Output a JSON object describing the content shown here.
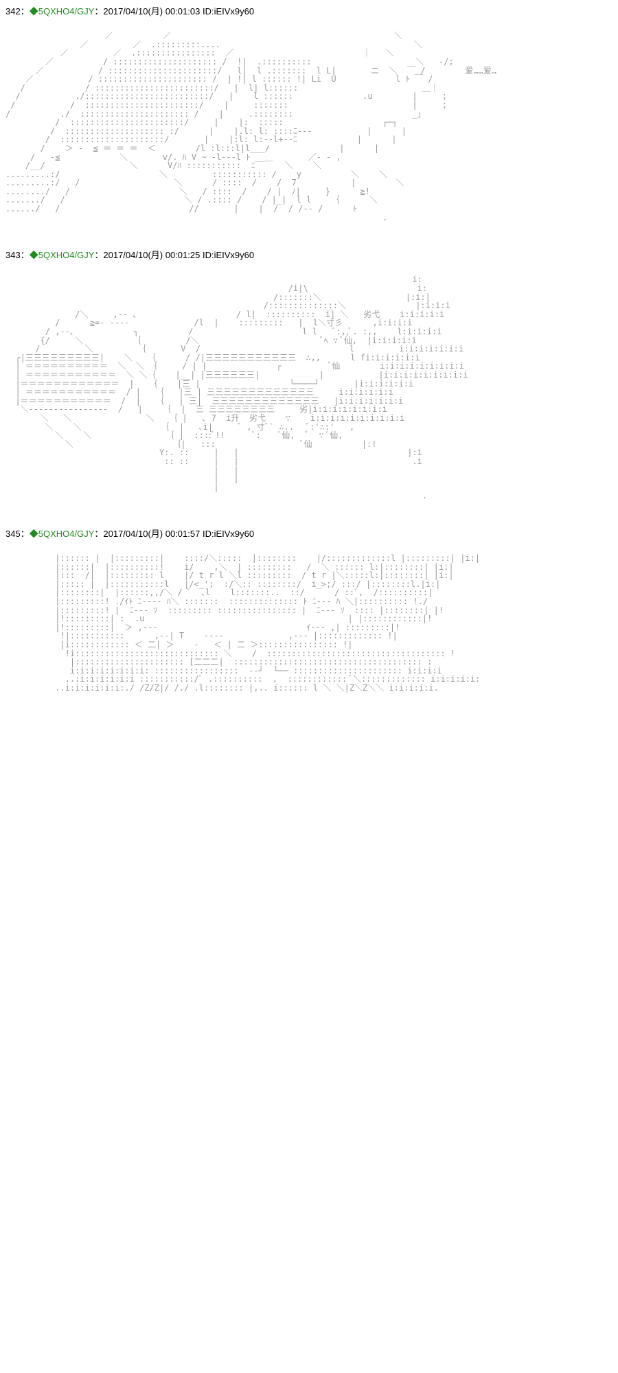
{
  "posts": [
    {
      "num": "342",
      "sep": "：",
      "diamond": "◆",
      "trip": "5QXHO4/GJY",
      "sep2": "：",
      "timestamp": "2017/04/10(月) 00:01:03",
      "idlabel": "ID:",
      "id": "iEIVx9y60",
      "ascii": "                    ／          ／                                             ＼\n               ／         ／  .:::::::::....                                       ＼\n           ／         ／  .::::::::::::::::  ／                          ｜   ＼\n        ／          / ::::::::::::::::::::: /  !|  .::::::::::                     ＼   -/;\n      ／           / ::::::::::::::::::::::/   l|  l .:::::::  l L|       ニ  ＼  ￣ /        爱……爱…\n    ／           / :::::::::::::::::::::: /  | !| l :::::: !| Li  U            l ﾄ ￣ /\n   /            / ::::::::::::::::::::::::/   |  l| l::::::                         ＿｜\n  /           ./:::::::::::::::::::::::::/   |    l ::::::              .u        |     ;\n /           /  :::::::::::::::::::::::/    |     :::::::                         |     ;\n/          ./  :::::::::::::::::::::: /    |     .::::::::                        _」\n          /  :::::::::::::::::::::::/     |    |:  :::::                    ┌─┐\n         /  :::::::::::::::::::: :/      |    |.l: l: ::::ﾆ---           |      |\n        /  :::::::::::::::::::::/       |    |:l: l:--l+--ﾆ            |      |\n       /    ＞ -  ≦ ＝ ＝ ＝  ＜        /l :l:::l|l___/              |      |\n     /   -≦            ＼       v/. ﾊ V ~ -l---l ﾄ __＿       ／‐ - ,\n    /__/                 ＼      V/ﾊ :::::::::::  ﾆ      ＼    ＼\n.........:/                    ＼         ::::::::::: /    y          ＼    ＼\n.........:/   /                   ＼      / ::::  /    /  7           |        ＼\n......../   /                      ＼   / ::::  /    / |  ﾉ|     }      ≧!\n......./   /                        ＼ / .:::: /    / |_|  l l    ｛      ＼\n....../   /                          //       |    |  /  / /-- /      ﾄ\n                                                                            .",
      "ascii_color": "#999999",
      "dialogue_text": "爱……爱…",
      "dialogue_color": "#000000"
    },
    {
      "num": "343",
      "sep": "：",
      "diamond": "◆",
      "trip": "5QXHO4/GJY",
      "sep2": "：",
      "timestamp": "2017/04/10(月) 00:01:25",
      "idlabel": "ID:",
      "id": "iEIVx9y60",
      "ascii": "                                                                                  i:\n                                                         /i|\\                      i:\n                                                      /:::::::＼                 |:i:|\n                                                    /::::::::::::::＼              |:i:i:i\n              /＼     ,-- ､                    / l|  ::::::::::  i| ＼   劣弋    i:i:i:i:i\n          /      ≧=- ----             /l  |    :::::::::   |  l＼寸彡      ,i:i:i:i\n        / ,--､            ┐          /                      l l   ﾞ:,,ﾟ. :,,    l:i:i:i:i\n       {/     ＼          ｛         /＼                         ﾞﾍ ∵ ﾞ仙,  |i:i:i:i:i\n      /         ＼         ｛       V  /                              l         i:i:i:i:i:i:i\n  ┌|三三三三三三三三三|    ＼   ｛      / /|三三三三三三三三三三三  ∴,,      l fi:i:i:i:i:i\n  | ＝＝＝＝＝＝＝＝＝＝  ＼  ＼ ｛     / | |              ┌          ﾞ仙        i:i:i:i:i:i:i:i:i\n  | ＝＝＝＝＝＝＝＝＝＝＝  ＼ ＼｛    |__| |三三三三三三|            |           |i:i:i:i:i:i:i:i:i\n  |＝＝＝＝＝＝＝＝＝＝＝＝  |   ｛    |三 |                  └────┘       |i:i:i:i:i:i\n  | ＝＝＝＝＝＝＝＝＝＝＝  / |   ｛   |三 | 三三三三三三三三三三三三三     i:i:i:i:i:i\n  |＝＝＝＝＝＝＝＝＝＝＝  /  |   ｛   | 三|  三三三三三三三三三三三三三   |i:i:i:i:i:i:i\n   ＼----------------  /   |    ｛  |  三 三三三三三三三三     劣|i:i:i:i:i:i:i:i\n       ＼   ＼               ＼   ｛ |   ､ 7  i升  劣弋    ∵    i:i:i:i:i:i:i:i:i:i\n        ＼    ＼                ｛  |   ､i|     ﾞ , 寸ﾞ` ∴..   ﾞ:'∴:'   ,\n          ＼    ＼               ｛ |  ::::ﾞ!!      ﾞ:    ﾞ仙,  ﾞ  ∵ ﾞ仙,\n            ＼                    ｛|   :::                 ﾞ仙          |:!\n                               Y:. ::     |   |                                  |:i\n                                :: ::     |   |                                   .i\n                                          |   |\n                                          |   |\n                                          |\n                                                                                    .",
      "ascii_color": "#999999"
    },
    {
      "num": "345",
      "sep": "：",
      "diamond": "◆",
      "trip": "5QXHO4/GJY",
      "sep2": "：",
      "timestamp": "2017/04/10(月) 00:01:57",
      "idlabel": "ID:",
      "id": "iEIVx9y60",
      "ascii": "          |:::::: |  |:::::::::|    ::::/＼:::::  |::::::::    |/:::::::::::::l |:::::::::| |i:|\n          |::::::|  |::::::::::!    i/    ,＼  | :::::::::   /  ＼ :::::: l:|::::::::| |i:|\n          |:::  /|  |::::::::: l    |/ t r l ＼l :::::::::  / t r |＼:::::l:|::::::::| |i:|\n          |::::: |  |:::::::::::l   |/<_';  :/＼:: ::::::::/  i_>;/ :::/ |::::::::l.|i:|\n          |::::::::|  |::::::,,/＼ / ﾞ  ､l    l:::::::..  ::/      / ::ﾞ,  /::::::::::|\n          |:::::::::! ./ｲﾄ ﾆ---- ﾊ＼ :::::::  :::::::::::::: ﾄ ﾆ--- ﾊ ＼|:::::::::: !./\n          |:::::::::! |  ﾆ--- ｿ  ::::::::: :::::::::::::::: |  ﾆ--- ｿ  :::: |::::::::| |!\n          |!:::::::::| :  .u                                         | |::::::::::::|!\n          |!:::::::::|  ＞ ,---                              ｲ--- ,| :::::::::|!\n           !|:::::::::::      ,--| T    ----             ,--- |::::::::::::: !|\n           |i:::::::::::: ＜ 二| ＞    -   ＜ | 二 ＞:::::::::::::::: !|\n            !i::::::::::::::::::::::::::::: ＼    /  :::::::::::::::::::::::::::::::::::: !\n             |:::::::::::::::::::::: [二二二|  :::::::::::::::::::::::::::::::::::::: :\n             i:i:i:i:i:i:i:i: :::::::::::::::::  --┘  └── :::::::::::::::::::::: i:i:i:i\n            ..:i:i:i:i:i:i :::::::::::/ﾞ .::::::::::  ,  :::::::::::: ﾞ＼::::::::::::: i:i:i:i:i:\n          ..i:i:i:i:i:i:./ /Z/Z|/ /./ .l:::::::: |,.. i:::::: l ＼ ＼|Z＼Z＼＼ i:i:i:i:i.",
      "ascii_color": "#999999"
    }
  ],
  "colors": {
    "background": "#ffffff",
    "text": "#000000",
    "trip": "#228B22",
    "ascii": "#999999"
  }
}
